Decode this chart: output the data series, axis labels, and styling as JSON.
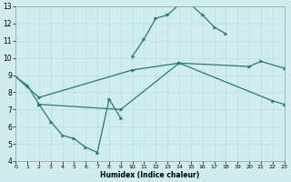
{
  "bg_color": "#d0ecec",
  "grid_color": "#b8dede",
  "line_color": "#2a7a70",
  "xlabel": "Humidex (Indice chaleur)",
  "xlim": [
    0,
    23
  ],
  "ylim": [
    4,
    13
  ],
  "xticks": [
    0,
    1,
    2,
    3,
    4,
    5,
    6,
    7,
    8,
    9,
    10,
    11,
    12,
    13,
    14,
    15,
    16,
    17,
    18,
    19,
    20,
    21,
    22,
    23
  ],
  "yticks": [
    4,
    5,
    6,
    7,
    8,
    9,
    10,
    11,
    12,
    13
  ],
  "curve_upper": {
    "x": [
      0,
      1,
      2,
      10,
      11,
      12,
      13,
      14,
      15,
      16,
      17,
      18
    ],
    "y": [
      8.9,
      8.4,
      7.3,
      10.1,
      11.1,
      12.3,
      12.5,
      13.1,
      13.1,
      12.5,
      11.8,
      11.4
    ]
  },
  "curve_zigzag": {
    "x": [
      2,
      3,
      4,
      5,
      6,
      7,
      8,
      9
    ],
    "y": [
      7.3,
      6.3,
      5.5,
      5.3,
      4.8,
      4.5,
      7.6,
      6.5
    ]
  },
  "curve_diag_upper": {
    "x": [
      0,
      2,
      10,
      14,
      20,
      21,
      23
    ],
    "y": [
      8.9,
      7.7,
      9.3,
      9.7,
      9.5,
      9.8,
      9.4
    ]
  },
  "curve_diag_lower": {
    "x": [
      2,
      9,
      14,
      22,
      23
    ],
    "y": [
      7.3,
      7.0,
      9.7,
      7.5,
      7.3
    ]
  }
}
